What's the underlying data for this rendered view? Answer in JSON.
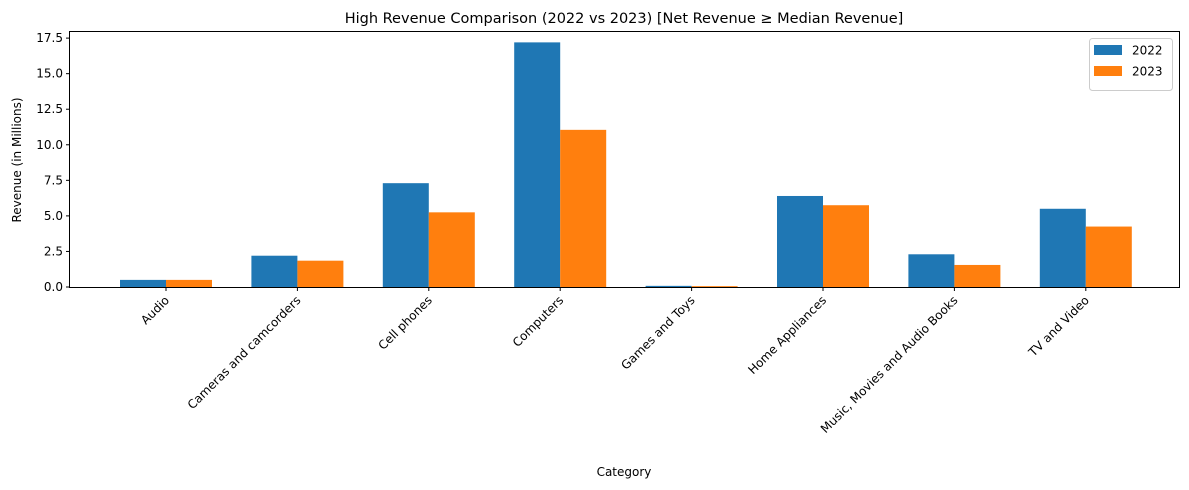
{
  "chart_data": {
    "type": "bar",
    "title": "High Revenue Comparison (2022 vs 2023) [Net Revenue ≥ Median Revenue]",
    "xlabel": "Category",
    "ylabel": "Revenue (in Millions)",
    "categories": [
      "Audio",
      "Cameras and camcorders",
      "Cell phones",
      "Computers",
      "Games and Toys",
      "Home Appliances",
      "Music, Movies and Audio Books",
      "TV and Video"
    ],
    "series": [
      {
        "name": "2022",
        "color": "#1f77b4",
        "values": [
          0.5,
          2.2,
          7.3,
          17.2,
          0.08,
          6.4,
          2.3,
          5.5
        ]
      },
      {
        "name": "2023",
        "color": "#ff7f0e",
        "values": [
          0.5,
          1.85,
          5.25,
          11.05,
          0.06,
          5.75,
          1.55,
          4.25
        ]
      }
    ],
    "ylim": [
      0,
      17.5
    ],
    "yticks": [
      "0.0",
      "2.5",
      "5.0",
      "7.5",
      "10.0",
      "12.5",
      "15.0",
      "17.5"
    ],
    "grid": false,
    "legend": "top-right"
  }
}
